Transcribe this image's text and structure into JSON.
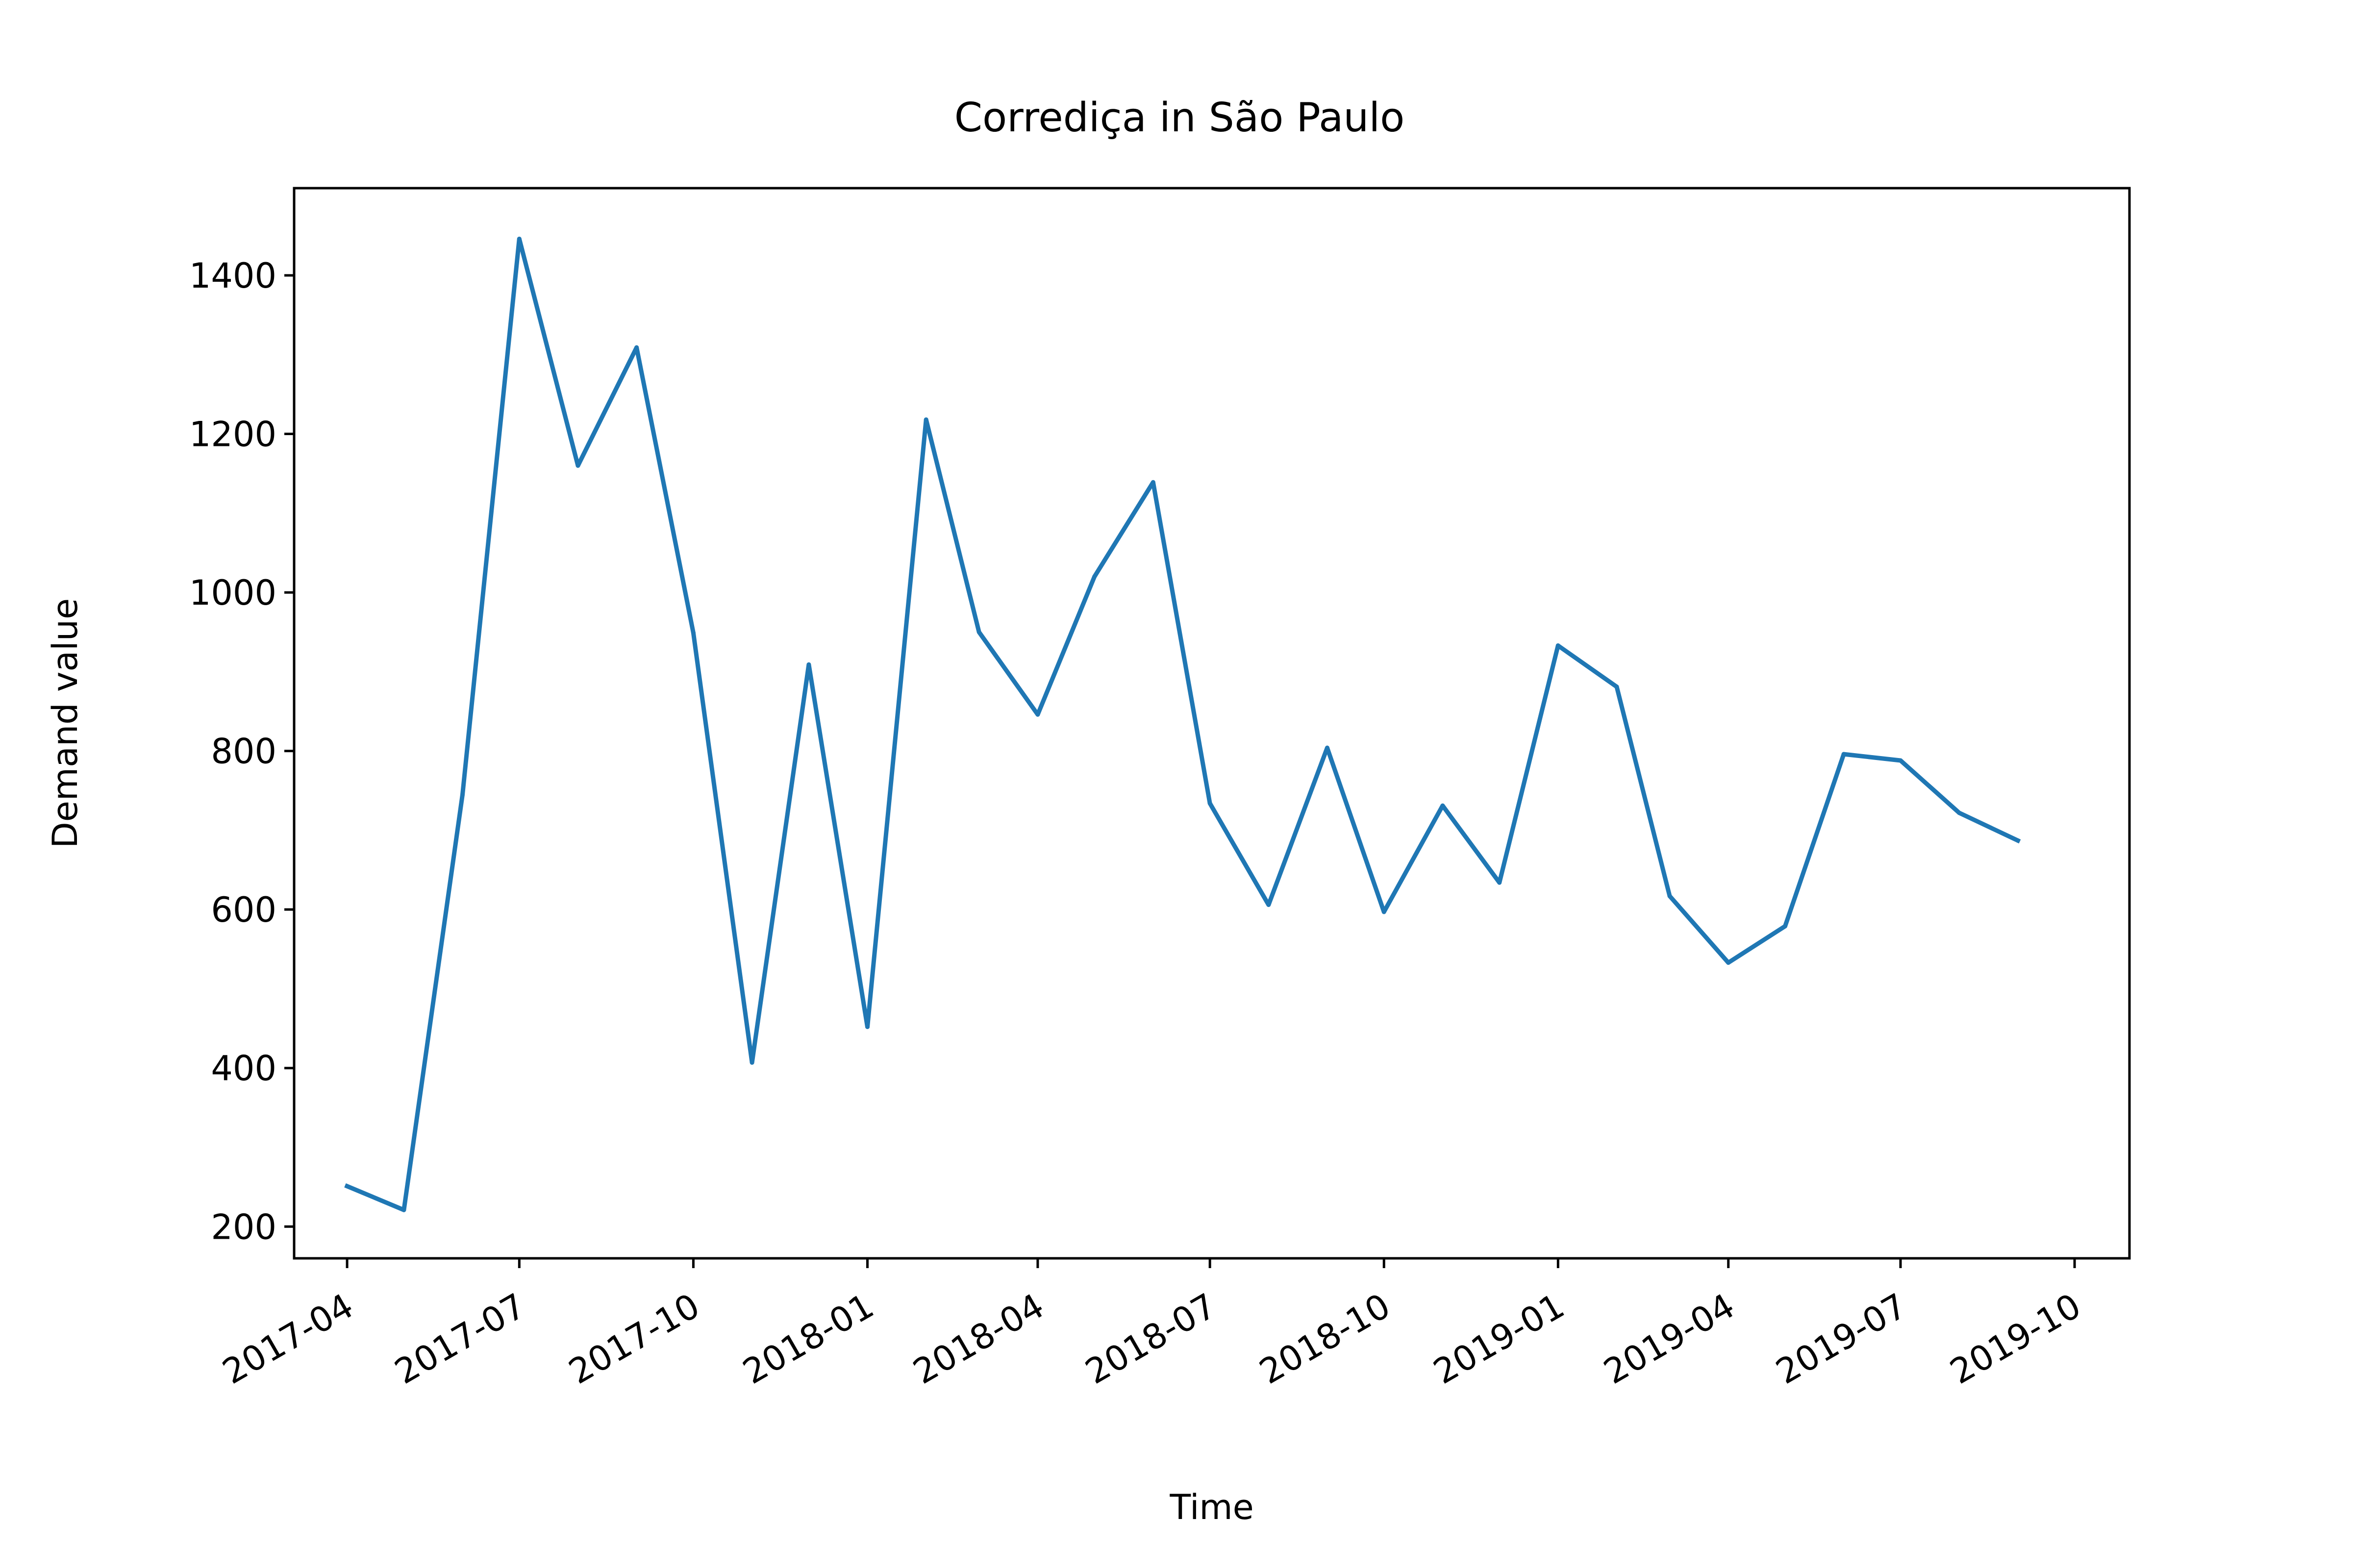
{
  "chart_data": {
    "type": "line",
    "title": "Corrediça in São Paulo",
    "xlabel": "Time",
    "ylabel": "Demand value",
    "x_tick_labels": [
      "2017-04",
      "2017-07",
      "2017-10",
      "2018-01",
      "2018-04",
      "2018-07",
      "2018-10",
      "2019-01",
      "2019-04",
      "2019-07",
      "2019-10"
    ],
    "y_ticks": [
      200,
      400,
      600,
      800,
      1000,
      1200,
      1400
    ],
    "ylim": [
      160,
      1510
    ],
    "xlim": [
      "2017-03-04",
      "2019-10-30"
    ],
    "grid": false,
    "legend": "none",
    "line_color": "#1f77b4",
    "series": [
      {
        "x": [
          "2017-04-01",
          "2017-05-01",
          "2017-06-01",
          "2017-07-01",
          "2017-08-01",
          "2017-09-01",
          "2017-10-01",
          "2017-11-01",
          "2017-12-01",
          "2018-01-01",
          "2018-02-01",
          "2018-03-01",
          "2018-04-01",
          "2018-05-01",
          "2018-06-01",
          "2018-07-01",
          "2018-08-01",
          "2018-09-01",
          "2018-10-01",
          "2018-11-01",
          "2018-12-01",
          "2019-01-01",
          "2019-02-01",
          "2019-03-01",
          "2019-04-01",
          "2019-05-01",
          "2019-06-01",
          "2019-07-01",
          "2019-08-01",
          "2019-09-01"
        ],
        "values": [
          251,
          221,
          745,
          1446,
          1160,
          1309,
          949,
          407,
          909,
          452,
          1218,
          950,
          846,
          1020,
          1139,
          734,
          606,
          804,
          597,
          731,
          634,
          933,
          881,
          617,
          533,
          579,
          796,
          788,
          722,
          687
        ]
      }
    ]
  }
}
